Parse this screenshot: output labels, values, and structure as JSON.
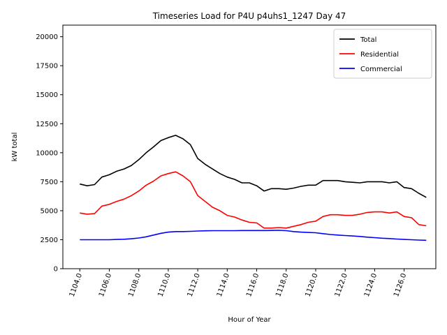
{
  "chart_data": {
    "type": "line",
    "title": "Timeseries Load for P4U p4uhs1_1247  Day 47",
    "xlabel": "Hour of Year",
    "ylabel": "kW total",
    "xlim": [
      1102.85,
      1128.15
    ],
    "ylim": [
      0,
      21000
    ],
    "x_ticks": [
      1104,
      1106,
      1108,
      1110,
      1112,
      1114,
      1116,
      1118,
      1120,
      1122,
      1124,
      1126
    ],
    "x_tick_labels": [
      "1104.0",
      "1106.0",
      "1108.0",
      "1110.0",
      "1112.0",
      "1114.0",
      "1116.0",
      "1118.0",
      "1120.0",
      "1122.0",
      "1124.0",
      "1126.0"
    ],
    "y_ticks": [
      0,
      2500,
      5000,
      7500,
      10000,
      12500,
      15000,
      17500,
      20000
    ],
    "y_tick_labels": [
      "0",
      "2500",
      "5000",
      "7500",
      "10000",
      "12500",
      "15000",
      "17500",
      "20000"
    ],
    "grid": false,
    "legend_position": "top-right",
    "series": [
      {
        "name": "Total",
        "color": "#000000",
        "x": [
          1104.0,
          1104.5,
          1105.0,
          1105.5,
          1106.0,
          1106.5,
          1107.0,
          1107.5,
          1108.0,
          1108.5,
          1109.0,
          1109.5,
          1110.0,
          1110.5,
          1111.0,
          1111.5,
          1112.0,
          1112.5,
          1113.0,
          1113.5,
          1114.0,
          1114.5,
          1115.0,
          1115.5,
          1116.0,
          1116.5,
          1117.0,
          1117.5,
          1118.0,
          1118.5,
          1119.0,
          1119.5,
          1120.0,
          1120.5,
          1121.0,
          1121.5,
          1122.0,
          1122.5,
          1123.0,
          1123.5,
          1124.0,
          1124.5,
          1125.0,
          1125.5,
          1126.0,
          1126.5,
          1127.0,
          1127.5
        ],
        "values": [
          7300,
          7150,
          7250,
          7900,
          8100,
          8400,
          8600,
          8900,
          9400,
          10000,
          10500,
          11050,
          11300,
          11500,
          11200,
          10700,
          9500,
          9000,
          8600,
          8200,
          7900,
          7700,
          7400,
          7400,
          7150,
          6700,
          6900,
          6900,
          6850,
          6950,
          7100,
          7200,
          7200,
          7600,
          7600,
          7600,
          7500,
          7450,
          7400,
          7500,
          7500,
          7500,
          7400,
          7500,
          7000,
          6900,
          6500,
          6150
        ]
      },
      {
        "name": "Residential",
        "color": "#ff0000",
        "x": [
          1104.0,
          1104.5,
          1105.0,
          1105.5,
          1106.0,
          1106.5,
          1107.0,
          1107.5,
          1108.0,
          1108.5,
          1109.0,
          1109.5,
          1110.0,
          1110.5,
          1111.0,
          1111.5,
          1112.0,
          1112.5,
          1113.0,
          1113.5,
          1114.0,
          1114.5,
          1115.0,
          1115.5,
          1116.0,
          1116.5,
          1117.0,
          1117.5,
          1118.0,
          1118.5,
          1119.0,
          1119.5,
          1120.0,
          1120.5,
          1121.0,
          1121.5,
          1122.0,
          1122.5,
          1123.0,
          1123.5,
          1124.0,
          1124.5,
          1125.0,
          1125.5,
          1126.0,
          1126.5,
          1127.0,
          1127.5
        ],
        "values": [
          4800,
          4700,
          4750,
          5400,
          5550,
          5800,
          6000,
          6300,
          6700,
          7200,
          7550,
          8000,
          8200,
          8350,
          8000,
          7500,
          6300,
          5800,
          5300,
          5000,
          4600,
          4450,
          4200,
          4000,
          3950,
          3500,
          3500,
          3550,
          3500,
          3650,
          3800,
          4000,
          4100,
          4500,
          4650,
          4650,
          4600,
          4600,
          4700,
          4850,
          4900,
          4900,
          4800,
          4900,
          4500,
          4400,
          3800,
          3700
        ]
      },
      {
        "name": "Commercial",
        "color": "#0000ff",
        "x": [
          1104.0,
          1104.5,
          1105.0,
          1105.5,
          1106.0,
          1106.5,
          1107.0,
          1107.5,
          1108.0,
          1108.5,
          1109.0,
          1109.5,
          1110.0,
          1110.5,
          1111.0,
          1111.5,
          1112.0,
          1112.5,
          1113.0,
          1113.5,
          1114.0,
          1114.5,
          1115.0,
          1115.5,
          1116.0,
          1116.5,
          1117.0,
          1117.5,
          1118.0,
          1118.5,
          1119.0,
          1119.5,
          1120.0,
          1120.5,
          1121.0,
          1121.5,
          1122.0,
          1122.5,
          1123.0,
          1123.5,
          1124.0,
          1124.5,
          1125.0,
          1125.5,
          1126.0,
          1126.5,
          1127.0,
          1127.5
        ],
        "values": [
          2500,
          2500,
          2500,
          2500,
          2500,
          2520,
          2540,
          2580,
          2650,
          2750,
          2900,
          3050,
          3150,
          3200,
          3200,
          3220,
          3250,
          3270,
          3280,
          3280,
          3280,
          3280,
          3290,
          3290,
          3290,
          3290,
          3300,
          3310,
          3280,
          3200,
          3150,
          3120,
          3100,
          3020,
          2950,
          2900,
          2860,
          2820,
          2780,
          2720,
          2680,
          2630,
          2600,
          2560,
          2520,
          2500,
          2470,
          2450
        ]
      }
    ]
  }
}
